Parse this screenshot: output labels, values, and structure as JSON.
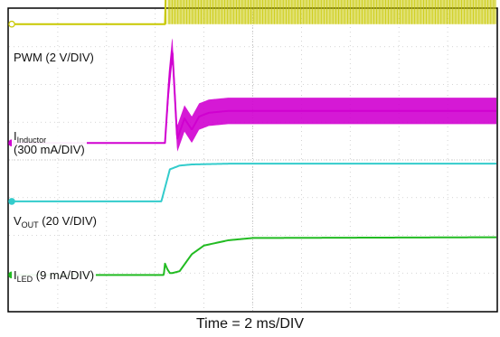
{
  "chart_data": {
    "type": "line",
    "title": "",
    "xlabel": "Time = 2 ms/DIV",
    "x_unit": "ms",
    "x_per_div_ms": 2,
    "xlim_ms": [
      0,
      20
    ],
    "divisions": {
      "x": 10,
      "y": 8
    },
    "grid": true,
    "series": [
      {
        "name": "PWM (2 V/DIV)",
        "label_parts": [
          "PWM",
          "",
          " (2 V/DIV)"
        ],
        "color": "#c8c800",
        "baseline_div": 7.6,
        "x_ms": [
          0,
          6.4,
          6.45,
          20
        ],
        "y_div": [
          0,
          0,
          1.3,
          1.3
        ],
        "band_div": 1.3
      },
      {
        "name": "IInductor (300 mA/DIV)",
        "label_parts": [
          "I",
          "Inductor",
          ""
        ],
        "label_line2": "(300 mA/DIV)",
        "color": "#d000d0",
        "baseline_div": 4.45,
        "x_ms": [
          0,
          6.4,
          6.55,
          6.7,
          6.9,
          7.2,
          7.5,
          7.8,
          8.2,
          9.0,
          20
        ],
        "y_div": [
          0,
          0,
          1.5,
          2.5,
          0.1,
          0.65,
          0.35,
          0.7,
          0.8,
          0.85,
          0.85
        ],
        "band_div": 0.7
      },
      {
        "name": "VOUT (20 V/DIV)",
        "label_parts": [
          "V",
          "OUT",
          " (20 V/DIV)"
        ],
        "color": "#33cccc",
        "baseline_div": 2.9,
        "x_ms": [
          0,
          6.25,
          6.6,
          7.0,
          7.5,
          9.0,
          20
        ],
        "y_div": [
          0,
          0,
          0.85,
          0.95,
          0.98,
          1.0,
          1.0
        ]
      },
      {
        "name": "ILED (9 mA/DIV)",
        "label_parts": [
          "I",
          "LED",
          " (9 mA/DIV)"
        ],
        "color": "#22bb22",
        "baseline_div": 0.95,
        "x_ms": [
          0,
          6.35,
          6.4,
          6.5,
          6.6,
          6.7,
          7.0,
          7.5,
          8.0,
          9.0,
          10.0,
          20
        ],
        "y_div": [
          0,
          0,
          0.3,
          0.15,
          0.05,
          0.05,
          0.1,
          0.55,
          0.78,
          0.92,
          0.98,
          1.0
        ]
      }
    ]
  },
  "caption": "Time = 2 ms/DIV"
}
